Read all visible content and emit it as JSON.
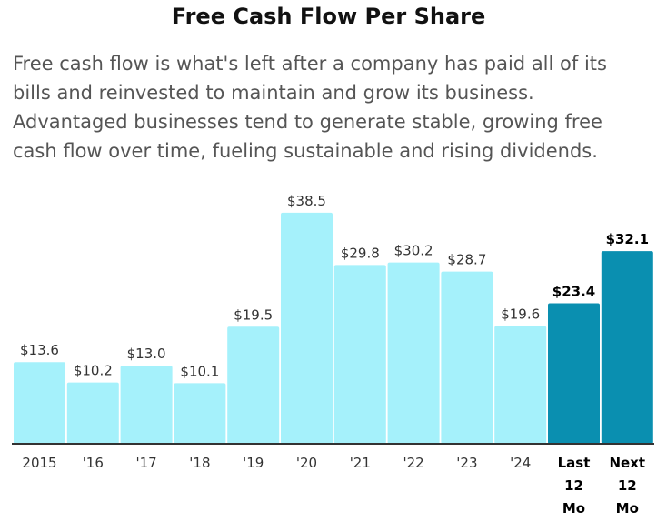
{
  "title": "Free Cash Flow Per Share",
  "description": "Free cash flow is what's left after a company has paid all of its bills and reinvested to maintain and grow its business. Advantaged businesses tend to generate stable, growing free cash flow over time, fueling sustainable and rising dividends.",
  "colors": {
    "historical": "#a5f1fb",
    "projected": "#0a8fb0",
    "axis": "#333333"
  },
  "chart_data": {
    "type": "bar",
    "title": "",
    "xlabel": "",
    "ylabel": "",
    "ylim": [
      0,
      40
    ],
    "grid": false,
    "categories": [
      "2015",
      "'16",
      "'17",
      "'18",
      "'19",
      "'20",
      "'21",
      "'22",
      "'23",
      "'24",
      "Last 12 Mo",
      "Next 12 Mo"
    ],
    "values": [
      13.6,
      10.2,
      13.0,
      10.1,
      19.5,
      38.5,
      29.8,
      30.2,
      28.7,
      19.6,
      23.4,
      32.1
    ],
    "value_labels": [
      "$13.6",
      "$10.2",
      "$13.0",
      "$10.1",
      "$19.5",
      "$38.5",
      "$29.8",
      "$30.2",
      "$28.7",
      "$19.6",
      "$23.4",
      "$32.1"
    ],
    "highlighted": [
      false,
      false,
      false,
      false,
      false,
      false,
      false,
      false,
      false,
      false,
      true,
      true
    ]
  }
}
